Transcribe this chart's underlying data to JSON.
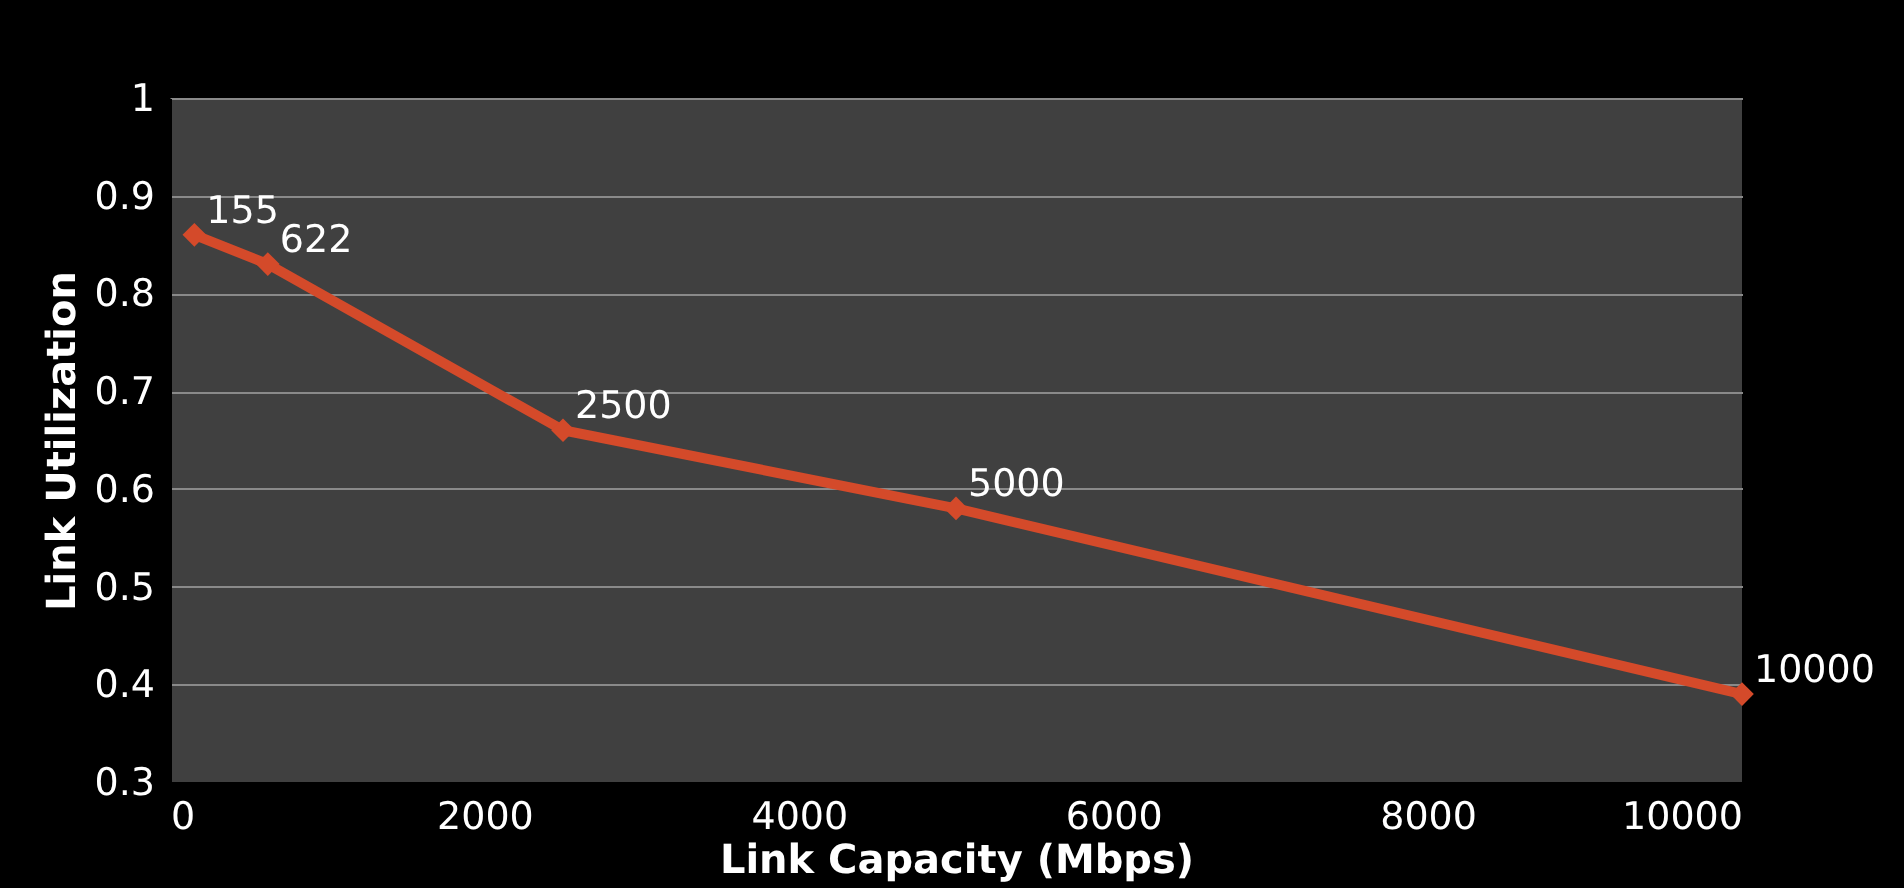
{
  "chart_data": {
    "type": "line",
    "xlabel": "Link Capacity (Mbps)",
    "ylabel": "Link Utilization",
    "x": [
      155,
      622,
      2500,
      5000,
      10000
    ],
    "series": [
      {
        "color": "#d44a2a",
        "values": [
          0.86,
          0.83,
          0.66,
          0.58,
          0.39
        ]
      }
    ],
    "annotations": [
      {
        "text": "155",
        "x": 155,
        "y": 0.86
      },
      {
        "text": "622",
        "x": 622,
        "y": 0.83
      },
      {
        "text": "2500",
        "x": 2500,
        "y": 0.66
      },
      {
        "text": "5000",
        "x": 5000,
        "y": 0.58
      },
      {
        "text": "10000",
        "x": 10000,
        "y": 0.39
      }
    ],
    "xlim": [
      0,
      10000
    ],
    "xticks": [
      0,
      2000,
      4000,
      6000,
      8000,
      10000
    ],
    "ylim": [
      0.3,
      1
    ],
    "yticks": [
      0.3,
      0.4,
      0.5,
      0.6,
      0.7,
      0.8,
      0.9,
      1
    ],
    "grid": "y",
    "marker": "diamond",
    "line_style": "solid"
  }
}
